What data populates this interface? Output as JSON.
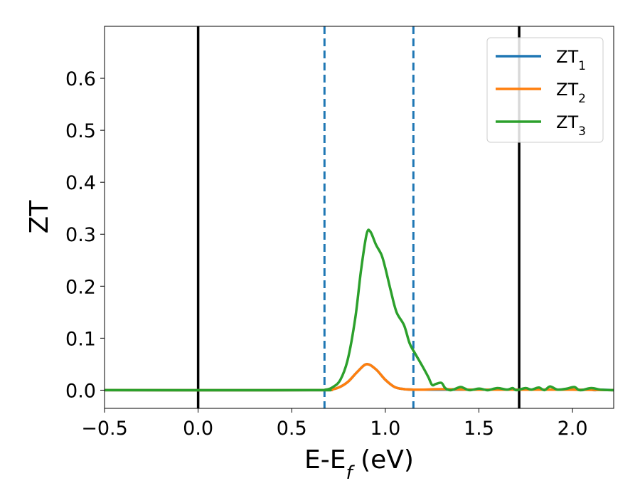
{
  "chart_data": {
    "type": "line",
    "xlabel": "E-E_f (eV)",
    "ylabel": "ZT",
    "xlim": [
      -0.5,
      2.22
    ],
    "ylim": [
      -0.035,
      0.7
    ],
    "xticks": [
      {
        "value": -0.5,
        "label": "−0.5"
      },
      {
        "value": 0.0,
        "label": "0.0"
      },
      {
        "value": 0.5,
        "label": "0.5"
      },
      {
        "value": 1.0,
        "label": "1.0"
      },
      {
        "value": 1.5,
        "label": "1.5"
      },
      {
        "value": 2.0,
        "label": "2.0"
      }
    ],
    "yticks": [
      {
        "value": 0.0,
        "label": "0.0"
      },
      {
        "value": 0.1,
        "label": "0.1"
      },
      {
        "value": 0.2,
        "label": "0.2"
      },
      {
        "value": 0.3,
        "label": "0.3"
      },
      {
        "value": 0.4,
        "label": "0.4"
      },
      {
        "value": 0.5,
        "label": "0.5"
      },
      {
        "value": 0.6,
        "label": "0.6"
      }
    ],
    "grid": false,
    "legend_position": "upper-right",
    "vlines": [
      {
        "x": 0.0,
        "color": "#000000",
        "style": "solid"
      },
      {
        "x": 1.715,
        "color": "#000000",
        "style": "solid"
      },
      {
        "x": 0.675,
        "color": "#1f77b4",
        "style": "dashed"
      },
      {
        "x": 1.15,
        "color": "#1f77b4",
        "style": "dashed"
      }
    ],
    "series": [
      {
        "name": "ZT",
        "subscript": "1",
        "color": "#1f77b4",
        "x": [
          -0.5,
          0.6,
          0.7,
          0.75,
          0.8,
          0.85,
          0.9,
          0.95,
          1.0,
          1.05,
          1.1,
          1.15,
          1.2,
          1.5,
          2.0,
          2.05,
          2.08,
          2.1,
          2.12,
          2.15,
          2.22
        ],
        "y": [
          0,
          0,
          0.001,
          0.005,
          0.016,
          0.035,
          0.05,
          0.04,
          0.02,
          0.006,
          0.002,
          0.001,
          0.001,
          0.001,
          0.001,
          0.0,
          0.002,
          0.001,
          0.0,
          0.001,
          0.0
        ]
      },
      {
        "name": "ZT",
        "subscript": "2",
        "color": "#ff7f0e",
        "x": [
          -0.5,
          0.6,
          0.7,
          0.75,
          0.8,
          0.85,
          0.9,
          0.95,
          1.0,
          1.05,
          1.1,
          1.15,
          1.2,
          1.3,
          1.5,
          2.0,
          2.22
        ],
        "y": [
          0,
          0,
          0.001,
          0.005,
          0.016,
          0.035,
          0.05,
          0.04,
          0.02,
          0.006,
          0.002,
          0.001,
          0.001,
          0.002,
          0.001,
          0.001,
          0.0
        ]
      },
      {
        "name": "ZT",
        "subscript": "3",
        "color": "#2ca02c",
        "x": [
          -0.5,
          0.6,
          0.68,
          0.72,
          0.76,
          0.8,
          0.84,
          0.87,
          0.9,
          0.92,
          0.95,
          0.98,
          1.0,
          1.03,
          1.06,
          1.1,
          1.13,
          1.16,
          1.2,
          1.23,
          1.25,
          1.27,
          1.3,
          1.32,
          1.35,
          1.4,
          1.42,
          1.45,
          1.5,
          1.53,
          1.55,
          1.6,
          1.65,
          1.68,
          1.7,
          1.75,
          1.78,
          1.82,
          1.85,
          1.88,
          1.92,
          1.97,
          2.01,
          2.04,
          2.1,
          2.15,
          2.22
        ],
        "y": [
          0,
          0,
          0.001,
          0.006,
          0.02,
          0.06,
          0.14,
          0.23,
          0.3,
          0.305,
          0.28,
          0.26,
          0.235,
          0.19,
          0.15,
          0.125,
          0.09,
          0.07,
          0.045,
          0.025,
          0.01,
          0.012,
          0.014,
          0.004,
          0.0,
          0.006,
          0.004,
          0.0,
          0.003,
          0.001,
          0.0,
          0.004,
          0.001,
          0.004,
          0.0,
          0.004,
          0.001,
          0.005,
          0.0,
          0.007,
          0.001,
          0.003,
          0.006,
          0.0,
          0.004,
          0.001,
          0.0
        ]
      }
    ]
  }
}
